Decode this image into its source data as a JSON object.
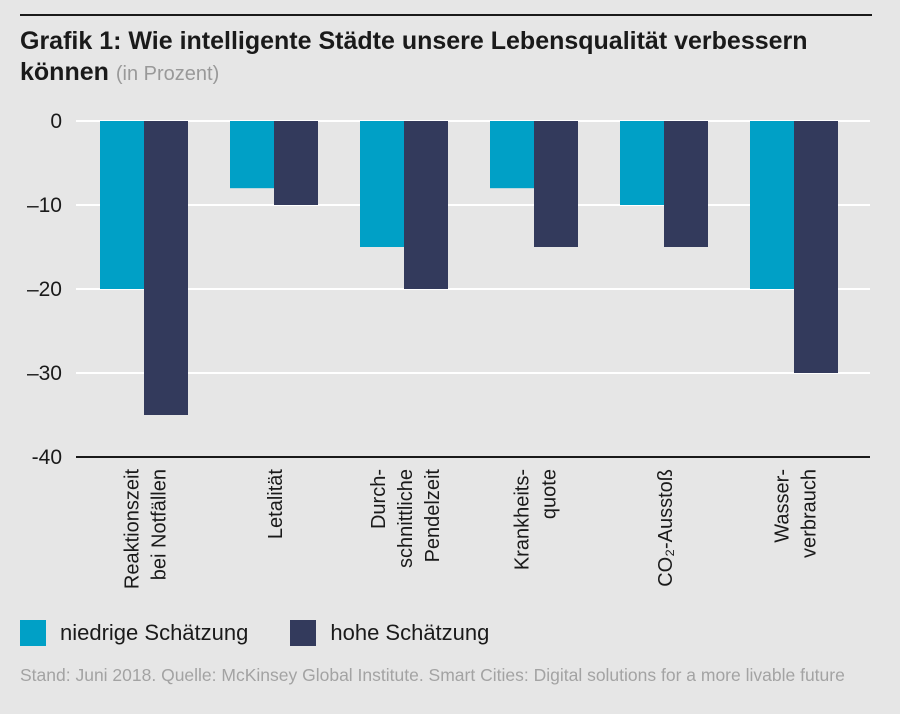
{
  "header": {
    "title_prefix": "Grafik 1:",
    "title": "Wie intelligente Städte unsere Lebensqualität verbessern können",
    "subtitle": "(in Prozent)"
  },
  "colors": {
    "background": "#e6e6e6",
    "low": "#00a0c6",
    "high": "#333a5c",
    "gridline": "#ffffff",
    "text": "#1a1a1a",
    "source": "#a3a3a3"
  },
  "chart_data": {
    "type": "bar",
    "orientation": "vertical",
    "grid": true,
    "ylim": [
      -40,
      0
    ],
    "yticks": [
      0,
      -10,
      -20,
      -30,
      -40
    ],
    "ytick_labels": [
      "0",
      "–10",
      "–20",
      "–30",
      "-40"
    ],
    "categories": [
      [
        "Reaktionszeit",
        "bei Notfällen"
      ],
      [
        "Letalität"
      ],
      [
        "Durch-",
        "schnittliche",
        "Pendelzeit"
      ],
      [
        "Krankheits-",
        "quote"
      ],
      [
        "CO₂-Ausstoß"
      ],
      [
        "Wasser-",
        "verbrauch"
      ]
    ],
    "series": [
      {
        "name": "niedrige Schätzung",
        "color": "#00a0c6",
        "values": [
          -20,
          -8,
          -15,
          -8,
          -10,
          -20
        ]
      },
      {
        "name": "hohe Schätzung",
        "color": "#333a5c",
        "values": [
          -35,
          -10,
          -20,
          -15,
          -15,
          -30
        ]
      }
    ],
    "legend_position": "bottom-left"
  },
  "legend": {
    "low_label": "niedrige Schätzung",
    "high_label": "hohe Schätzung"
  },
  "source": "Stand: Juni 2018. Quelle: McKinsey Global Institute. Smart Cities: Digital solutions for a more livable future"
}
